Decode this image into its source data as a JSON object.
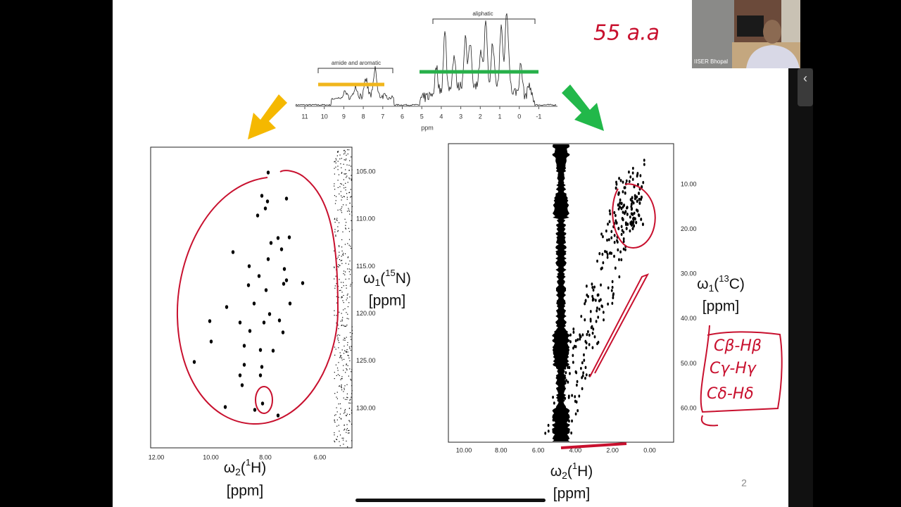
{
  "video": {
    "caption": "IISER Bhopal"
  },
  "spectrum_1d": {
    "region_labels": [
      "amide and aromatic",
      "aliphatic"
    ],
    "axis_ticks": [
      "11",
      "10",
      "9",
      "8",
      "7",
      "6",
      "5",
      "4",
      "3",
      "2",
      "1",
      "0",
      "-1"
    ],
    "axis_label": "ppm"
  },
  "hsqc_15n": {
    "x_ticks": [
      "12.00",
      "10.00",
      "8.00",
      "6.00"
    ],
    "y_ticks": [
      "105.00",
      "110.00",
      "115.00",
      "120.00",
      "125.00",
      "130.00"
    ],
    "x_label": [
      "ω",
      "2",
      "(",
      "1",
      "H)"
    ],
    "x_unit": "[ppm]",
    "y_label": [
      "ω",
      "1",
      "(",
      "15",
      "N)"
    ],
    "y_unit": "[ppm]"
  },
  "hsqc_13c": {
    "x_ticks": [
      "10.00",
      "8.00",
      "6.00",
      "4.00",
      "2.00",
      "0.00"
    ],
    "y_ticks": [
      "10.00",
      "20.00",
      "30.00",
      "40.00",
      "50.00",
      "60.00"
    ],
    "x_label": [
      "ω",
      "2",
      "(",
      "1",
      "H)"
    ],
    "x_unit": "[ppm]",
    "y_label": [
      "ω",
      "1",
      "(",
      "13",
      "C)"
    ],
    "y_unit": "[ppm]"
  },
  "annotations": {
    "count": "55 a.a",
    "assignments": [
      "Cβ-Hβ",
      "Cγ-Hγ",
      "Cδ-Hδ"
    ]
  },
  "page_number": "2"
}
